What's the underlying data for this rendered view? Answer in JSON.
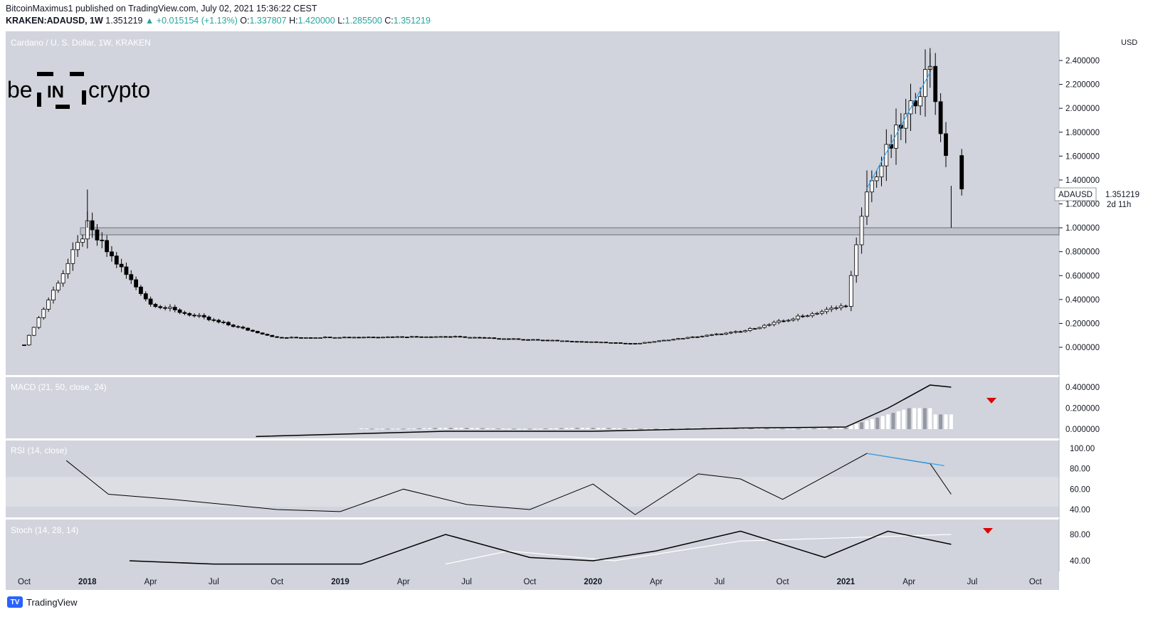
{
  "header": {
    "line1": "BitcoinMaximus1 published on TradingView.com, July 02, 2021 15:36:22 CEST",
    "symbol": "KRAKEN:ADAUSD, 1W",
    "price": "1.351219",
    "change": "+0.015154 (+1.13%)",
    "o_label": "O:",
    "o": "1.337807",
    "h_label": "H:",
    "h": "1.420000",
    "l_label": "L:",
    "l": "1.285500",
    "c_label": "C:",
    "c": "1.351219"
  },
  "chart_title": "Cardano / U. S. Dollar, 1W, KRAKEN",
  "logo": {
    "left": "be",
    "mid": "IN",
    "right": "crypto"
  },
  "footer": {
    "brand": "TradingView",
    "logo_text": "TV"
  },
  "colors": {
    "panel_bg": "#d1d4dc",
    "rsi_band": "#dcdee4",
    "candle": "#000000",
    "blue_line": "#2ea3f2",
    "red_marker": "#e00000"
  },
  "chart_data": [
    {
      "type": "candlestick",
      "title": "Cardano / U. S. Dollar, 1W, KRAKEN",
      "ylabel": "USD",
      "ylim": [
        0.0,
        2.6
      ],
      "yticks": [
        "2.400000",
        "2.200000",
        "2.000000",
        "1.800000",
        "1.600000",
        "1.400000",
        "1.200000",
        "1.000000",
        "0.800000",
        "0.600000",
        "0.400000",
        "0.200000",
        "0.000000"
      ],
      "price_label": "ADAUSD",
      "price_value": "1.351219",
      "price_countdown": "2d 11h",
      "last_close": 1.351219,
      "support_zone": [
        1.0,
        1.05
      ],
      "key_points": [
        {
          "date": "2017-10",
          "close": 0.02
        },
        {
          "date": "2018-01",
          "high": 1.32,
          "close": 1.0
        },
        {
          "date": "2018-04",
          "close": 0.36
        },
        {
          "date": "2018-10",
          "close": 0.08
        },
        {
          "date": "2019-06",
          "close": 0.09
        },
        {
          "date": "2020-03",
          "close": 0.03
        },
        {
          "date": "2020-08",
          "close": 0.13
        },
        {
          "date": "2021-01",
          "close": 0.35
        },
        {
          "date": "2021-02",
          "high": 1.48,
          "close": 1.3
        },
        {
          "date": "2021-05",
          "high": 2.46,
          "close": 2.3
        },
        {
          "date": "2021-06",
          "low": 1.0,
          "close": 1.351219
        }
      ],
      "trendline_price": [
        [
          "2021-02",
          1.33
        ],
        [
          "2021-05",
          2.3
        ]
      ]
    },
    {
      "type": "macd",
      "title": "MACD (21, 50, close, 24)",
      "ylim": [
        -0.05,
        0.45
      ],
      "yticks": [
        "0.400000",
        "0.200000",
        "0.000000"
      ],
      "macd_points": [
        [
          "2018-09",
          -0.07
        ],
        [
          "2019-06",
          -0.02
        ],
        [
          "2020-01",
          -0.02
        ],
        [
          "2020-08",
          0.01
        ],
        [
          "2021-01",
          0.02
        ],
        [
          "2021-03",
          0.2
        ],
        [
          "2021-05",
          0.42
        ],
        [
          "2021-06",
          0.4
        ]
      ],
      "marker": "bearish-cross"
    },
    {
      "type": "line",
      "title": "RSI (14, close)",
      "ylim": [
        35,
        100
      ],
      "yticks": [
        "100.00",
        "80.00",
        "60.00",
        "40.00"
      ],
      "band": [
        40,
        70
      ],
      "points": [
        [
          "2017-12",
          88
        ],
        [
          "2018-02",
          55
        ],
        [
          "2018-05",
          50
        ],
        [
          "2018-10",
          40
        ],
        [
          "2019-01",
          38
        ],
        [
          "2019-04",
          60
        ],
        [
          "2019-07",
          45
        ],
        [
          "2019-10",
          40
        ],
        [
          "2020-01",
          65
        ],
        [
          "2020-03",
          35
        ],
        [
          "2020-06",
          75
        ],
        [
          "2020-08",
          70
        ],
        [
          "2020-10",
          50
        ],
        [
          "2021-02",
          95
        ],
        [
          "2021-05",
          85
        ],
        [
          "2021-06",
          55
        ]
      ],
      "divergence": [
        [
          "2021-02",
          95
        ],
        [
          "2021-05",
          83
        ]
      ]
    },
    {
      "type": "line",
      "title": "Stoch (14, 28, 14)",
      "ylim": [
        30,
        95
      ],
      "yticks": [
        "80.00",
        "40.00"
      ],
      "k_points": [
        [
          "2018-03",
          40
        ],
        [
          "2018-07",
          35
        ],
        [
          "2019-02",
          35
        ],
        [
          "2019-06",
          80
        ],
        [
          "2019-10",
          45
        ],
        [
          "2020-01",
          40
        ],
        [
          "2020-04",
          55
        ],
        [
          "2020-08",
          85
        ],
        [
          "2020-12",
          45
        ],
        [
          "2021-03",
          85
        ],
        [
          "2021-06",
          65
        ]
      ],
      "d_points": [
        [
          "2019-06",
          35
        ],
        [
          "2019-09",
          55
        ],
        [
          "2020-02",
          40
        ],
        [
          "2020-08",
          70
        ],
        [
          "2021-06",
          80
        ]
      ],
      "marker": "bearish-cross"
    }
  ],
  "xaxis": {
    "labels": [
      "Oct",
      "2018",
      "Apr",
      "Jul",
      "Oct",
      "2019",
      "Apr",
      "Jul",
      "Oct",
      "2020",
      "Apr",
      "Jul",
      "Oct",
      "2021",
      "Apr",
      "Jul",
      "Oct"
    ]
  }
}
